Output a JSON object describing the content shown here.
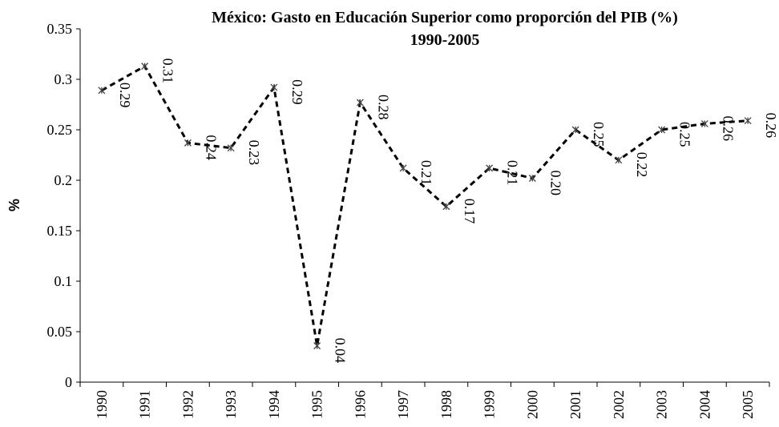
{
  "chart_data": {
    "type": "line",
    "title": [
      "México: Gasto en Educación Superior como proporción del PIB (%)",
      "1990-2005"
    ],
    "y_label": "%",
    "categories": [
      "1990",
      "1991",
      "1992",
      "1993",
      "1994",
      "1995",
      "1996",
      "1997",
      "1998",
      "1999",
      "2000",
      "2001",
      "2002",
      "2003",
      "2004",
      "2005"
    ],
    "values": [
      0.289,
      0.313,
      0.237,
      0.232,
      0.292,
      0.036,
      0.277,
      0.212,
      0.174,
      0.212,
      0.202,
      0.25,
      0.22,
      0.25,
      0.256,
      0.259
    ],
    "value_labels": [
      "0.29",
      "0.31",
      "0.24",
      "0.23",
      "0.29",
      "0.04",
      "0.28",
      "0.21",
      "0.17",
      "0.21",
      "0.20",
      "0.25",
      "0.22",
      "0.25",
      "0.26",
      "0.26"
    ],
    "color": "#000000",
    "ylim": [
      0,
      0.35
    ],
    "yticks": [
      0,
      0.05,
      0.1,
      0.15,
      0.2,
      0.25,
      0.3,
      0.35
    ],
    "grid": false
  }
}
